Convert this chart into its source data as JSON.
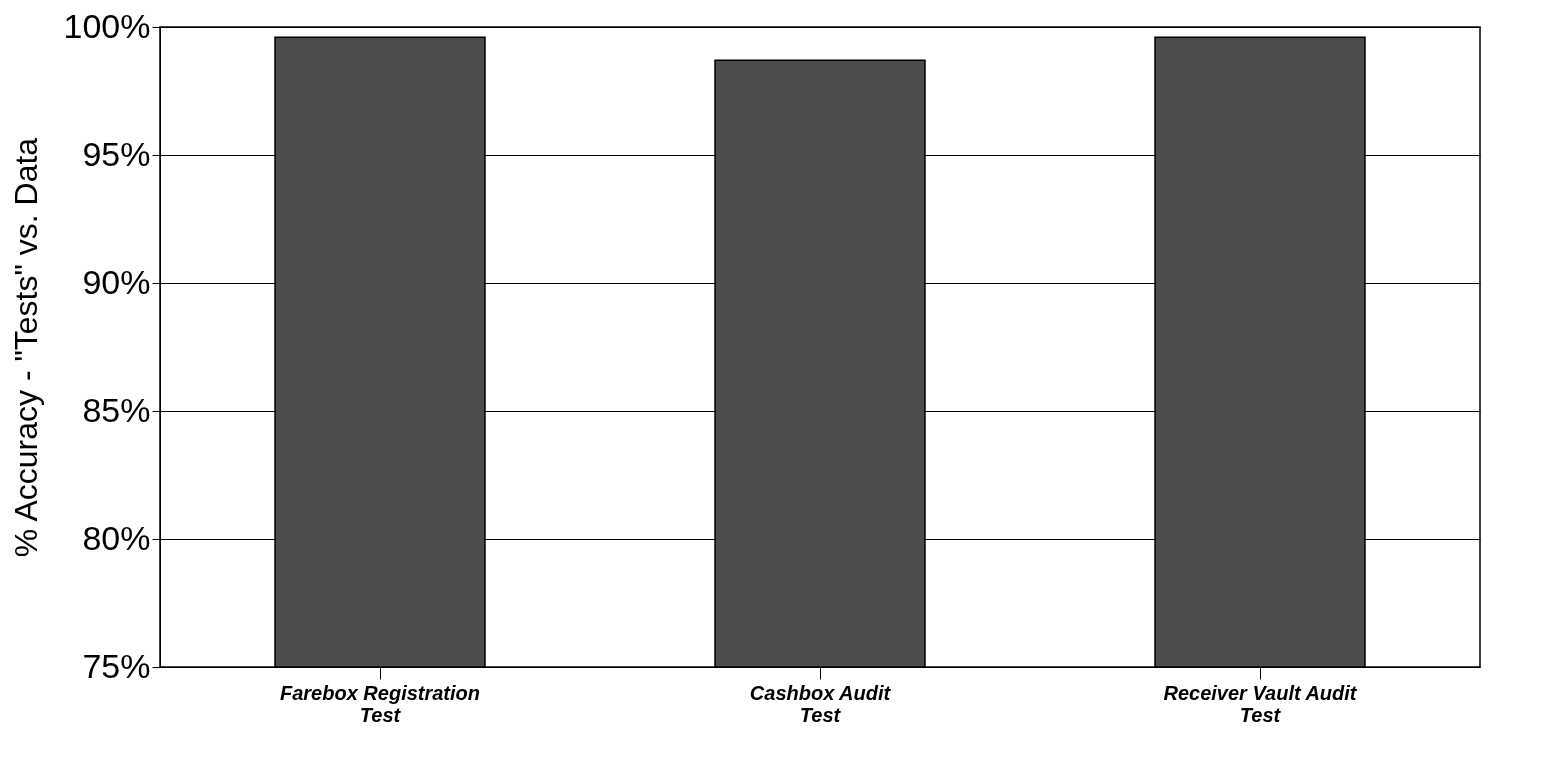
{
  "chart_data": {
    "type": "bar",
    "ylabel": "% Accuracy - \"Tests\"  vs. Data",
    "categories": [
      "Farebox Registration Test",
      "Cashbox Audit Test",
      "Receiver Vault Audit Test"
    ],
    "values": [
      99.6,
      98.7,
      99.6
    ],
    "color": "#4d4d4d",
    "ylim": [
      75,
      100
    ],
    "yticks": [
      {
        "value": 75,
        "label": "75%"
      },
      {
        "value": 80,
        "label": "80%"
      },
      {
        "value": 85,
        "label": "85%"
      },
      {
        "value": 90,
        "label": "90%"
      },
      {
        "value": 95,
        "label": "95%"
      },
      {
        "value": 100,
        "label": "100%"
      }
    ],
    "grid": "y"
  }
}
